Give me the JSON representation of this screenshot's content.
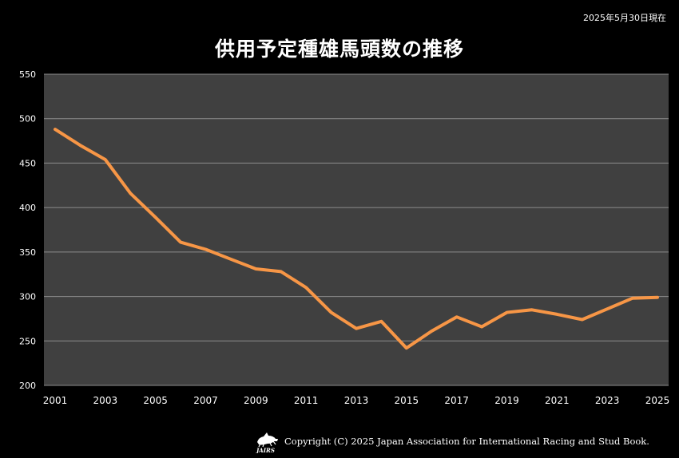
{
  "as_of": "2025年5月30日現在",
  "title": "供用予定種雄馬頭数の推移",
  "copyright": "Copyright (C) 2025 Japan Association for International Racing and Stud Book.",
  "logo_text": "JAIRS",
  "colors": {
    "line": "#f79646",
    "plot_bg": "#404040",
    "grid": "#8c8c8c",
    "page_bg": "#000000"
  },
  "chart_data": {
    "type": "line",
    "title": "供用予定種雄馬頭数の推移",
    "xlabel": "",
    "ylabel": "",
    "x": [
      2001,
      2002,
      2003,
      2004,
      2005,
      2006,
      2007,
      2008,
      2009,
      2010,
      2011,
      2012,
      2013,
      2014,
      2015,
      2016,
      2017,
      2018,
      2019,
      2020,
      2021,
      2022,
      2023,
      2024,
      2025
    ],
    "x_ticks": [
      "2001",
      "2003",
      "2005",
      "2007",
      "2009",
      "2011",
      "2013",
      "2015",
      "2017",
      "2019",
      "2021",
      "2023",
      "2025"
    ],
    "y_ticks": [
      "200",
      "250",
      "300",
      "350",
      "400",
      "450",
      "500",
      "550"
    ],
    "ylim": [
      200,
      550
    ],
    "grid": true,
    "legend": "none",
    "series": [
      {
        "values": [
          488,
          470,
          454,
          416,
          389,
          361,
          353,
          342,
          331,
          328,
          310,
          282,
          264,
          272,
          242,
          261,
          277,
          266,
          282,
          285,
          280,
          274,
          286,
          298,
          299
        ]
      }
    ]
  }
}
